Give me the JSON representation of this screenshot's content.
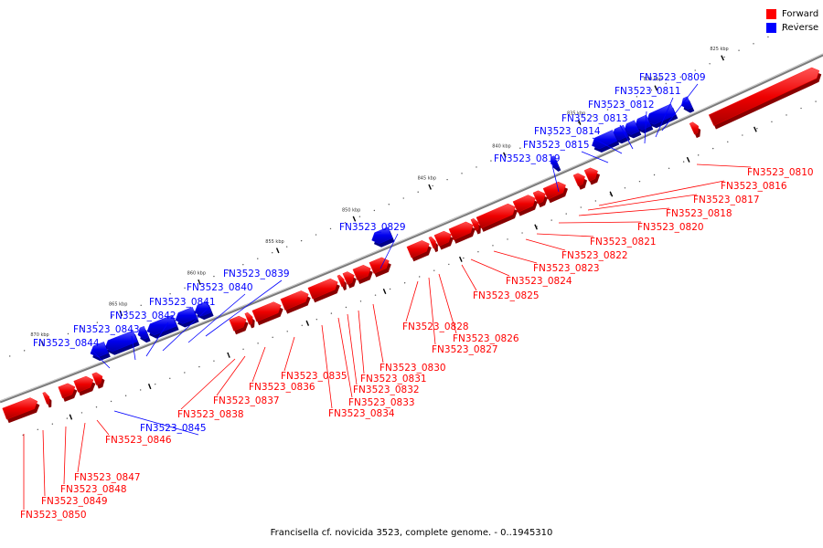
{
  "legend": {
    "forward_label": "Forward",
    "reverse_label": "Reverse",
    "forward_color": "#ff0000",
    "reverse_color": "#0000ff"
  },
  "caption": "Francisella cf. novicida 3523, complete genome. - 0..1945310",
  "ticks": [
    "825 kbp",
    "830 kbp",
    "835 kbp",
    "840 kbp",
    "845 kbp",
    "850 kbp",
    "855 kbp",
    "860 kbp",
    "865 kbp",
    "870 kbp"
  ],
  "genes": [
    {
      "name": "FN3523_0809",
      "strand": "reverse"
    },
    {
      "name": "FN3523_0810",
      "strand": "forward"
    },
    {
      "name": "FN3523_0811",
      "strand": "reverse"
    },
    {
      "name": "FN3523_0812",
      "strand": "reverse"
    },
    {
      "name": "FN3523_0813",
      "strand": "reverse"
    },
    {
      "name": "FN3523_0814",
      "strand": "reverse"
    },
    {
      "name": "FN3523_0815",
      "strand": "reverse"
    },
    {
      "name": "FN3523_0816",
      "strand": "forward"
    },
    {
      "name": "FN3523_0817",
      "strand": "forward"
    },
    {
      "name": "FN3523_0818",
      "strand": "forward"
    },
    {
      "name": "FN3523_0819",
      "strand": "reverse"
    },
    {
      "name": "FN3523_0820",
      "strand": "forward"
    },
    {
      "name": "FN3523_0821",
      "strand": "forward"
    },
    {
      "name": "FN3523_0822",
      "strand": "forward"
    },
    {
      "name": "FN3523_0823",
      "strand": "forward"
    },
    {
      "name": "FN3523_0824",
      "strand": "forward"
    },
    {
      "name": "FN3523_0825",
      "strand": "forward"
    },
    {
      "name": "FN3523_0826",
      "strand": "forward"
    },
    {
      "name": "FN3523_0827",
      "strand": "forward"
    },
    {
      "name": "FN3523_0828",
      "strand": "forward"
    },
    {
      "name": "FN3523_0829",
      "strand": "reverse"
    },
    {
      "name": "FN3523_0830",
      "strand": "forward"
    },
    {
      "name": "FN3523_0831",
      "strand": "forward"
    },
    {
      "name": "FN3523_0832",
      "strand": "forward"
    },
    {
      "name": "FN3523_0833",
      "strand": "forward"
    },
    {
      "name": "FN3523_0834",
      "strand": "forward"
    },
    {
      "name": "FN3523_0835",
      "strand": "forward"
    },
    {
      "name": "FN3523_0836",
      "strand": "forward"
    },
    {
      "name": "FN3523_0837",
      "strand": "forward"
    },
    {
      "name": "FN3523_0838",
      "strand": "forward"
    },
    {
      "name": "FN3523_0839",
      "strand": "reverse"
    },
    {
      "name": "FN3523_0840",
      "strand": "reverse"
    },
    {
      "name": "FN3523_0841",
      "strand": "reverse"
    },
    {
      "name": "FN3523_0842",
      "strand": "reverse"
    },
    {
      "name": "FN3523_0843",
      "strand": "reverse"
    },
    {
      "name": "FN3523_0844",
      "strand": "reverse"
    },
    {
      "name": "FN3523_0845",
      "strand": "reverse"
    },
    {
      "name": "FN3523_0846",
      "strand": "forward"
    },
    {
      "name": "FN3523_0847",
      "strand": "forward"
    },
    {
      "name": "FN3523_0848",
      "strand": "forward"
    },
    {
      "name": "FN3523_0849",
      "strand": "forward"
    },
    {
      "name": "FN3523_0850",
      "strand": "forward"
    }
  ]
}
